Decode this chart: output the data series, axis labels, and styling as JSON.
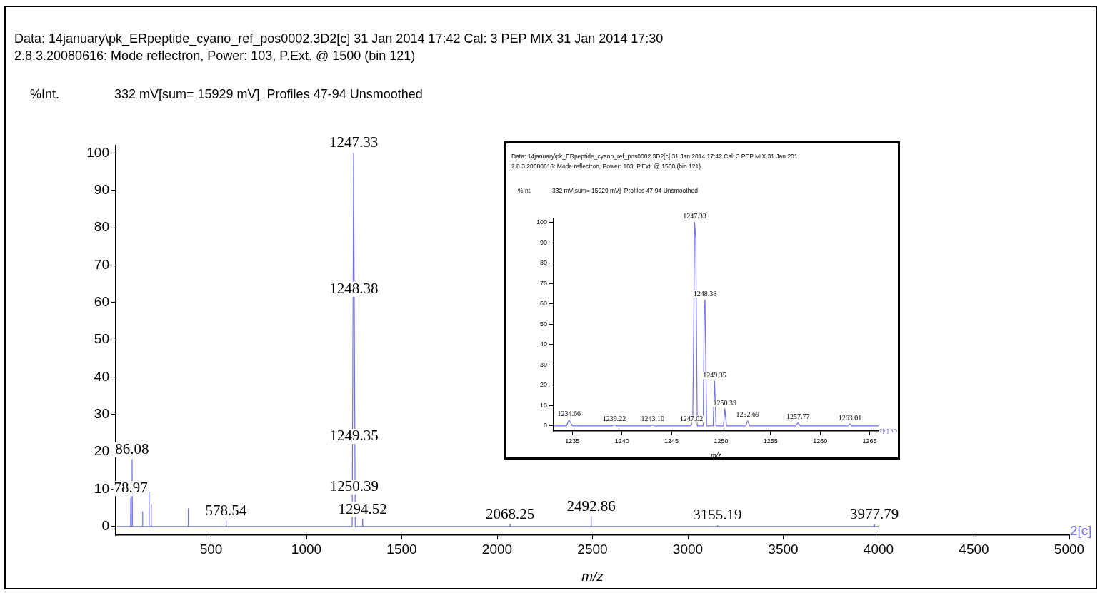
{
  "chart_data": [
    {
      "type": "line",
      "title": "Data: 14january\\pk_ERpeptide_cyano_ref_pos0002.3D2[c] 31 Jan 2014 17:42 Cal: 3 PEP MIX 31 Jan 2014 17:30",
      "subtitle": "2.8.3.20080616: Mode reflectron, Power: 103, P.Ext. @ 1500 (bin 121)",
      "ylabel": "%Int.",
      "xlabel": "m/z",
      "series": [
        {
          "color": "#7070f0",
          "x": [
            7,
            78,
            78.97,
            80,
            84.5,
            86.08,
            88,
            140,
            141,
            142,
            174,
            175,
            176,
            185,
            186,
            187,
            379,
            380,
            381,
            577,
            578.54,
            580,
            1240,
            1247.33,
            1256,
            1293,
            1294.52,
            1296,
            2067,
            2068.25,
            2070,
            2491,
            2492.86,
            2494,
            3154,
            3155.19,
            3157,
            3976,
            3977.79,
            3979,
            4000
          ],
          "values": [
            0,
            0,
            7.6,
            0,
            0,
            18,
            0,
            0,
            4,
            0,
            0,
            9.3,
            0,
            0,
            6,
            0,
            0,
            4.8,
            0,
            0,
            1.5,
            0,
            0,
            100,
            0,
            0,
            2,
            0,
            0,
            0.6,
            0,
            0,
            2.7,
            0,
            0,
            0.3,
            0,
            0,
            0.5,
            0,
            0
          ]
        }
      ],
      "xlim": [
        0,
        5000
      ],
      "xticks": [
        500,
        1000,
        1500,
        2000,
        2500,
        3000,
        3500,
        4000,
        4500,
        5000
      ],
      "ylim": [
        -2.3,
        102
      ],
      "yticks": [
        0,
        10,
        20,
        30,
        40,
        50,
        60,
        70,
        80,
        90,
        100
      ],
      "annotations": [
        "332 mV[sum= 15929 mV]  Profiles 47-94 Unsmoothed",
        "2[c]",
        {
          "text": "1247.33",
          "x": 1247.33,
          "y": 100
        },
        {
          "text": "1248.38",
          "x": 1248.38,
          "y": 61
        },
        {
          "text": "1249.35",
          "x": 1249.35,
          "y": 21.6
        },
        {
          "text": "1250.39",
          "x": 1250.39,
          "y": 8
        },
        {
          "text": "86.08",
          "x": 86.08,
          "y": 18
        },
        {
          "text": "78.97",
          "x": 78.97,
          "y": 7.6
        },
        {
          "text": "578.54",
          "x": 578.54,
          "y": 1.5
        },
        {
          "text": "1294.52",
          "x": 1294.52,
          "y": 2
        },
        {
          "text": "2068.25",
          "x": 2068.25,
          "y": 0.6
        },
        {
          "text": "2492.86",
          "x": 2492.86,
          "y": 2.7
        },
        {
          "text": "3155.19",
          "x": 3155.19,
          "y": 0.3
        },
        {
          "text": "3977.79",
          "x": 3977.79,
          "y": 0.5
        }
      ]
    },
    {
      "type": "line",
      "title": "Data: 14january\\pk_ERpeptide_cyano_ref_pos0002.3D2[c] 31 Jan 2014 17:42 Cal: 3 PEP MIX 31 Jan 201",
      "subtitle": "2.8.3.20080616: Mode reflectron, Power: 103, P.Ext. @ 1500 (bin 121)",
      "ylabel": "%Int.",
      "xlabel": "m/z",
      "series": [
        {
          "color": "#7070f0",
          "x": [
            1233.2,
            1234.4,
            1234.66,
            1235.0,
            1239.0,
            1239.22,
            1239.5,
            1242.9,
            1243.1,
            1243.3,
            1246.9,
            1247.02,
            1247.15,
            1247.25,
            1247.33,
            1247.45,
            1247.6,
            1248.2,
            1248.3,
            1248.38,
            1248.55,
            1249.2,
            1249.35,
            1249.5,
            1250.25,
            1250.39,
            1250.55,
            1252.5,
            1252.69,
            1252.9,
            1257.5,
            1257.77,
            1258.0,
            1262.8,
            1263.01,
            1263.2,
            1265.9
          ],
          "values": [
            0,
            0,
            3,
            0,
            0,
            0.5,
            0,
            0,
            0.5,
            0,
            0,
            0.5,
            5,
            50,
            100,
            92,
            0,
            0,
            55,
            62,
            0,
            0,
            22,
            0,
            0,
            8.4,
            0,
            0,
            2.5,
            0,
            0,
            1.5,
            0,
            0,
            1,
            0,
            0
          ]
        }
      ],
      "xlim": [
        1233.1,
        1265.9
      ],
      "xticks": [
        1235,
        1240,
        1245,
        1250,
        1255,
        1260,
        1265
      ],
      "ylim": [
        -2.5,
        102
      ],
      "yticks": [
        0,
        10,
        20,
        30,
        40,
        50,
        60,
        70,
        80,
        90,
        100
      ],
      "annotations": [
        "332 mV[sum= 15929 mV]  Profiles 47-94 Unsmoothed",
        "2[c].3D",
        {
          "text": "1247.33",
          "x": 1247.33,
          "y": 100
        },
        {
          "text": "1248.38",
          "x": 1248.38,
          "y": 62
        },
        {
          "text": "1249.35",
          "x": 1249.35,
          "y": 22
        },
        {
          "text": "1250.39",
          "x": 1250.39,
          "y": 8.4
        },
        {
          "text": "1234.66",
          "x": 1234.66,
          "y": 3
        },
        {
          "text": "1239.22",
          "x": 1239.22,
          "y": 0.5
        },
        {
          "text": "1243.10",
          "x": 1243.1,
          "y": 0.5
        },
        {
          "text": "1247.02",
          "x": 1247.02,
          "y": 0.5
        },
        {
          "text": "1252.69",
          "x": 1252.69,
          "y": 2.5
        },
        {
          "text": "1257.77",
          "x": 1257.77,
          "y": 1.5
        },
        {
          "text": "1263.01",
          "x": 1263.01,
          "y": 1
        }
      ]
    }
  ]
}
